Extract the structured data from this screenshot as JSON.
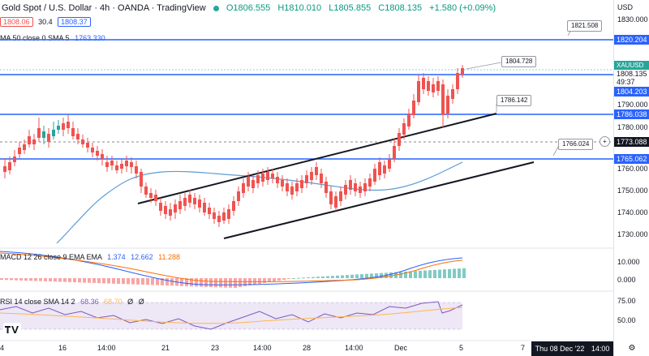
{
  "header": {
    "symbol": "Gold Spot / U.S. Dollar · 4h · OANDA · TradingView",
    "open": "O1806.555",
    "high": "H1810.010",
    "low": "L1805.855",
    "close": "C1808.135",
    "change": "+1.580 (+0.09%)",
    "sell_price": "1808.06",
    "spread": "30.4",
    "buy_price": "1808.37",
    "sma_label": "MA 50 close 0 SMA 5",
    "sma_value": "1763.330"
  },
  "indicators": {
    "macd_label": "MACD 12 26 close 9 EMA EMA",
    "macd_v1": "1.374",
    "macd_v2": "12.662",
    "macd_v3": "11.288",
    "rsi_label": "RSI 14 close SMA 14 2",
    "rsi_v1": "68.36",
    "rsi_v2": "68.70",
    "rsi_v3": "Ø",
    "rsi_v4": "Ø"
  },
  "price_axis": {
    "currency": "USD",
    "ticks": [
      "1830.000",
      "1790.000",
      "1780.000",
      "1760.000",
      "1750.000",
      "1740.000",
      "1730.000"
    ],
    "macd_ticks": [
      "10.000",
      "0.000"
    ],
    "rsi_ticks": [
      "75.00",
      "50.00"
    ],
    "symbol_tag": "XAUUSD",
    "last_price": "1808.135",
    "countdown": "49:37",
    "level_1": "1820.204",
    "level_2": "1804.203",
    "level_3": "1786.038",
    "level_4": "1773.088",
    "level_5": "1765.062"
  },
  "callouts": {
    "c1": "1821.508",
    "c2": "1804.728",
    "c3": "1786.142",
    "c4": "1766.024"
  },
  "time_axis": {
    "labels": [
      "4",
      "16",
      "14:00",
      "21",
      "23",
      "14:00",
      "28",
      "14:00",
      "Dec",
      "5",
      "7"
    ],
    "crosshair_date": "Thu 08 Dec '22",
    "crosshair_time": "14:00"
  },
  "colors": {
    "up": "#26a69a",
    "down": "#ef5350",
    "hline": "#2962ff",
    "ma": "#5b9bd5",
    "trend": "#131722"
  }
}
